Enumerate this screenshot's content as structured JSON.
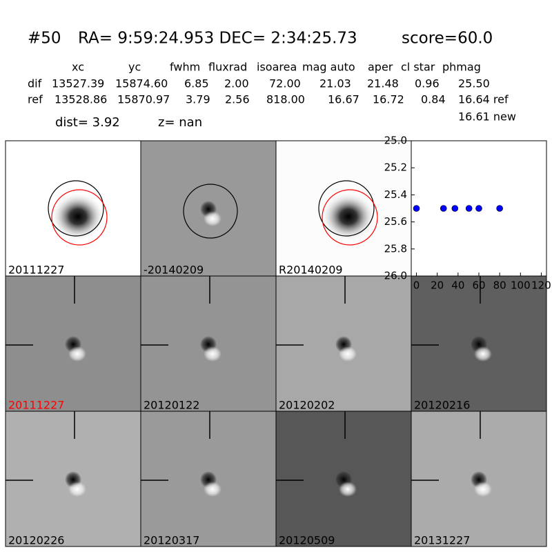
{
  "header": {
    "id": "#50",
    "coords": "RA= 9:59:24.953 DEC= 2:34:25.73",
    "score": "score=60.0"
  },
  "table": {
    "columns": [
      "xc",
      "yc",
      "fwhm",
      "fluxrad",
      "isoarea",
      "mag auto",
      "aper",
      "cl star",
      "phmag"
    ],
    "rows": [
      [
        "dif",
        "13527.39",
        "15874.60",
        "6.85",
        "2.00",
        "72.00",
        "21.03",
        "21.48",
        "0.96",
        "25.50"
      ],
      [
        "ref",
        "13528.86",
        "15870.97",
        "3.79",
        "2.56",
        "818.00",
        "16.67",
        "16.72",
        "0.84",
        "16.64 ref"
      ]
    ],
    "extra": "16.61 new"
  },
  "dist": "dist=  3.92",
  "z": "z=   nan",
  "panels": [
    {
      "label": "20111227"
    },
    {
      "label": "-20140209"
    },
    {
      "label": "R20140209"
    },
    {
      "label": "20111227"
    },
    {
      "label": "20120122"
    },
    {
      "label": "20120202"
    },
    {
      "label": "20120216"
    },
    {
      "label": "20120226"
    },
    {
      "label": "20120317"
    },
    {
      "label": "20120509"
    },
    {
      "label": "20131227"
    }
  ],
  "chart_data": {
    "type": "scatter",
    "color": "#0000ff",
    "x": [
      0,
      26,
      37,
      50.5,
      60,
      80
    ],
    "values": [
      25.5,
      25.5,
      25.5,
      25.5,
      25.5,
      25.5
    ],
    "xlim": [
      -5,
      125
    ],
    "xticks": [
      0,
      20,
      40,
      60,
      80,
      100,
      120
    ],
    "ylim": [
      26,
      25
    ],
    "yticks": [
      {
        "value": 25,
        "label": "25.0"
      },
      25.2,
      25.4,
      25.6,
      25.8,
      {
        "value": 26,
        "label": "26.0"
      }
    ]
  }
}
